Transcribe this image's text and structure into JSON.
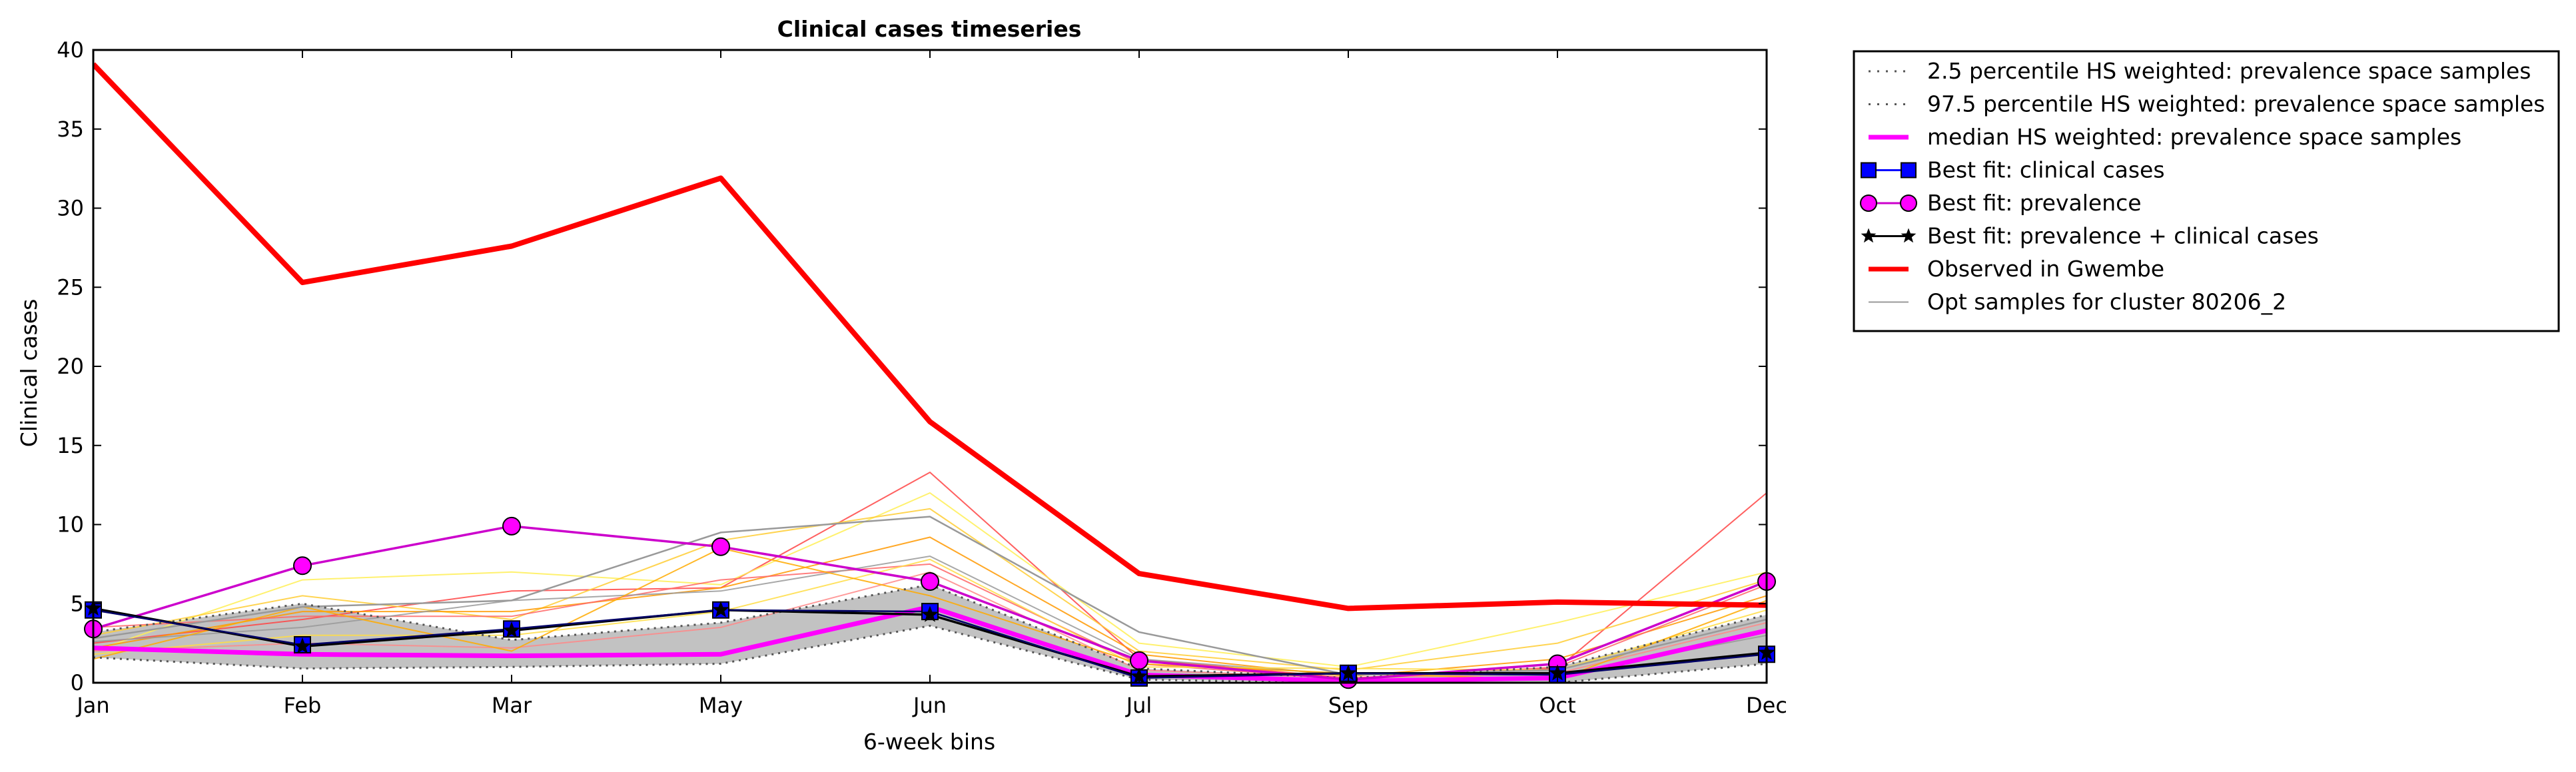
{
  "chart_data": {
    "type": "line",
    "title": "Clinical cases timeseries",
    "xlabel": "6-week bins",
    "ylabel": "Clinical cases",
    "categories": [
      "Jan",
      "Feb",
      "Mar",
      "May",
      "Jun",
      "Jul",
      "Sep",
      "Oct",
      "Dec"
    ],
    "ylim": [
      0,
      40
    ],
    "yticks": [
      "0",
      "5",
      "10",
      "15",
      "20",
      "25",
      "30",
      "35",
      "40"
    ],
    "grid": false,
    "legend_position": "outside-right",
    "band": {
      "lower": [
        1.6,
        0.9,
        1.0,
        1.2,
        3.6,
        0.2,
        0.0,
        0.0,
        1.2
      ],
      "upper": [
        3.2,
        5.0,
        2.7,
        3.8,
        6.2,
        0.9,
        0.3,
        1.0,
        4.3
      ],
      "color": "#c2c2c2"
    },
    "legend": [
      {
        "label": "2.5 percentile HS weighted: prevalence space samples",
        "style": "dotted",
        "color": "#555555"
      },
      {
        "label": "97.5 percentile HS weighted: prevalence space samples",
        "style": "dotted",
        "color": "#555555"
      },
      {
        "label": "median HS weighted: prevalence space samples",
        "style": "solid-thick",
        "color": "#ff00ff"
      },
      {
        "label": "Best fit: clinical cases",
        "style": "square-marker",
        "color": "#0000ff"
      },
      {
        "label": "Best fit: prevalence",
        "style": "circle-marker",
        "color": "#ff00ff"
      },
      {
        "label": "Best fit: prevalence + clinical cases",
        "style": "star-marker",
        "color": "#000000"
      },
      {
        "label": "Observed in Gwembe",
        "style": "solid-thick",
        "color": "#ff0000"
      },
      {
        "label": "Opt samples for cluster 80206_2",
        "style": "thin",
        "color": "#999999"
      }
    ],
    "series": [
      {
        "name": "2.5 percentile HS weighted: prevalence space samples",
        "color": "#555555",
        "values": [
          1.6,
          0.9,
          1.0,
          1.2,
          3.6,
          0.2,
          0.0,
          0.0,
          1.2
        ]
      },
      {
        "name": "97.5 percentile HS weighted: prevalence space samples",
        "color": "#555555",
        "values": [
          3.2,
          5.0,
          2.7,
          3.8,
          6.2,
          0.9,
          0.3,
          1.0,
          4.3
        ]
      },
      {
        "name": "median HS weighted: prevalence space samples",
        "color": "#ff00ff",
        "values": [
          2.2,
          1.8,
          1.7,
          1.8,
          4.8,
          0.5,
          0.1,
          0.3,
          3.3
        ]
      },
      {
        "name": "Best fit: clinical cases",
        "color": "#0000ff",
        "values": [
          4.6,
          2.4,
          3.4,
          4.6,
          4.5,
          0.3,
          0.6,
          0.5,
          1.8
        ]
      },
      {
        "name": "Best fit: prevalence",
        "color": "#ff00ff",
        "values": [
          3.4,
          7.4,
          9.9,
          8.6,
          6.4,
          1.4,
          0.2,
          1.2,
          6.4
        ]
      },
      {
        "name": "Best fit: prevalence + clinical cases",
        "color": "#000000",
        "values": [
          4.7,
          2.3,
          3.3,
          4.6,
          4.3,
          0.4,
          0.6,
          0.6,
          1.9
        ]
      },
      {
        "name": "Observed in Gwembe",
        "color": "#ff0000",
        "values": [
          39.1,
          25.3,
          27.6,
          31.9,
          16.5,
          6.9,
          4.7,
          5.1,
          4.9
        ]
      },
      {
        "name": "Opt samples for cluster 80206_2",
        "color": "#999999",
        "values": [
          2.8,
          4.8,
          5.2,
          9.5,
          10.5,
          3.2,
          0.5,
          0.8,
          4.0
        ]
      }
    ],
    "samples": [
      {
        "color": "#ff4444",
        "values": [
          2.5,
          4.0,
          5.8,
          6.0,
          13.3,
          1.5,
          0.3,
          0.9,
          12.0
        ]
      },
      {
        "color": "#ffee55",
        "values": [
          2.0,
          6.5,
          7.0,
          6.2,
          12.0,
          2.5,
          1.0,
          3.8,
          7.0
        ]
      },
      {
        "color": "#ffcc33",
        "values": [
          3.0,
          5.5,
          4.0,
          9.0,
          11.0,
          2.0,
          0.8,
          2.5,
          6.5
        ]
      },
      {
        "color": "#ff9900",
        "values": [
          2.2,
          4.5,
          4.5,
          6.0,
          9.2,
          1.8,
          0.4,
          1.5,
          5.5
        ]
      },
      {
        "color": "#ff6666",
        "values": [
          3.5,
          4.2,
          4.2,
          6.5,
          7.5,
          1.2,
          0.2,
          1.0,
          6.2
        ]
      },
      {
        "color": "#999999",
        "values": [
          2.6,
          3.5,
          5.2,
          5.8,
          8.0,
          1.5,
          0.5,
          0.5,
          3.0
        ]
      },
      {
        "color": "#ffdd44",
        "values": [
          1.8,
          3.0,
          3.0,
          4.5,
          7.8,
          1.0,
          0.9,
          0.8,
          4.6
        ]
      },
      {
        "color": "#ff8888",
        "values": [
          2.0,
          2.5,
          2.2,
          3.5,
          7.0,
          0.8,
          0.3,
          0.6,
          3.8
        ]
      },
      {
        "color": "#ffaa00",
        "values": [
          1.5,
          4.8,
          2.0,
          8.5,
          5.5,
          1.2,
          0.6,
          0.2,
          5.2
        ]
      }
    ]
  }
}
